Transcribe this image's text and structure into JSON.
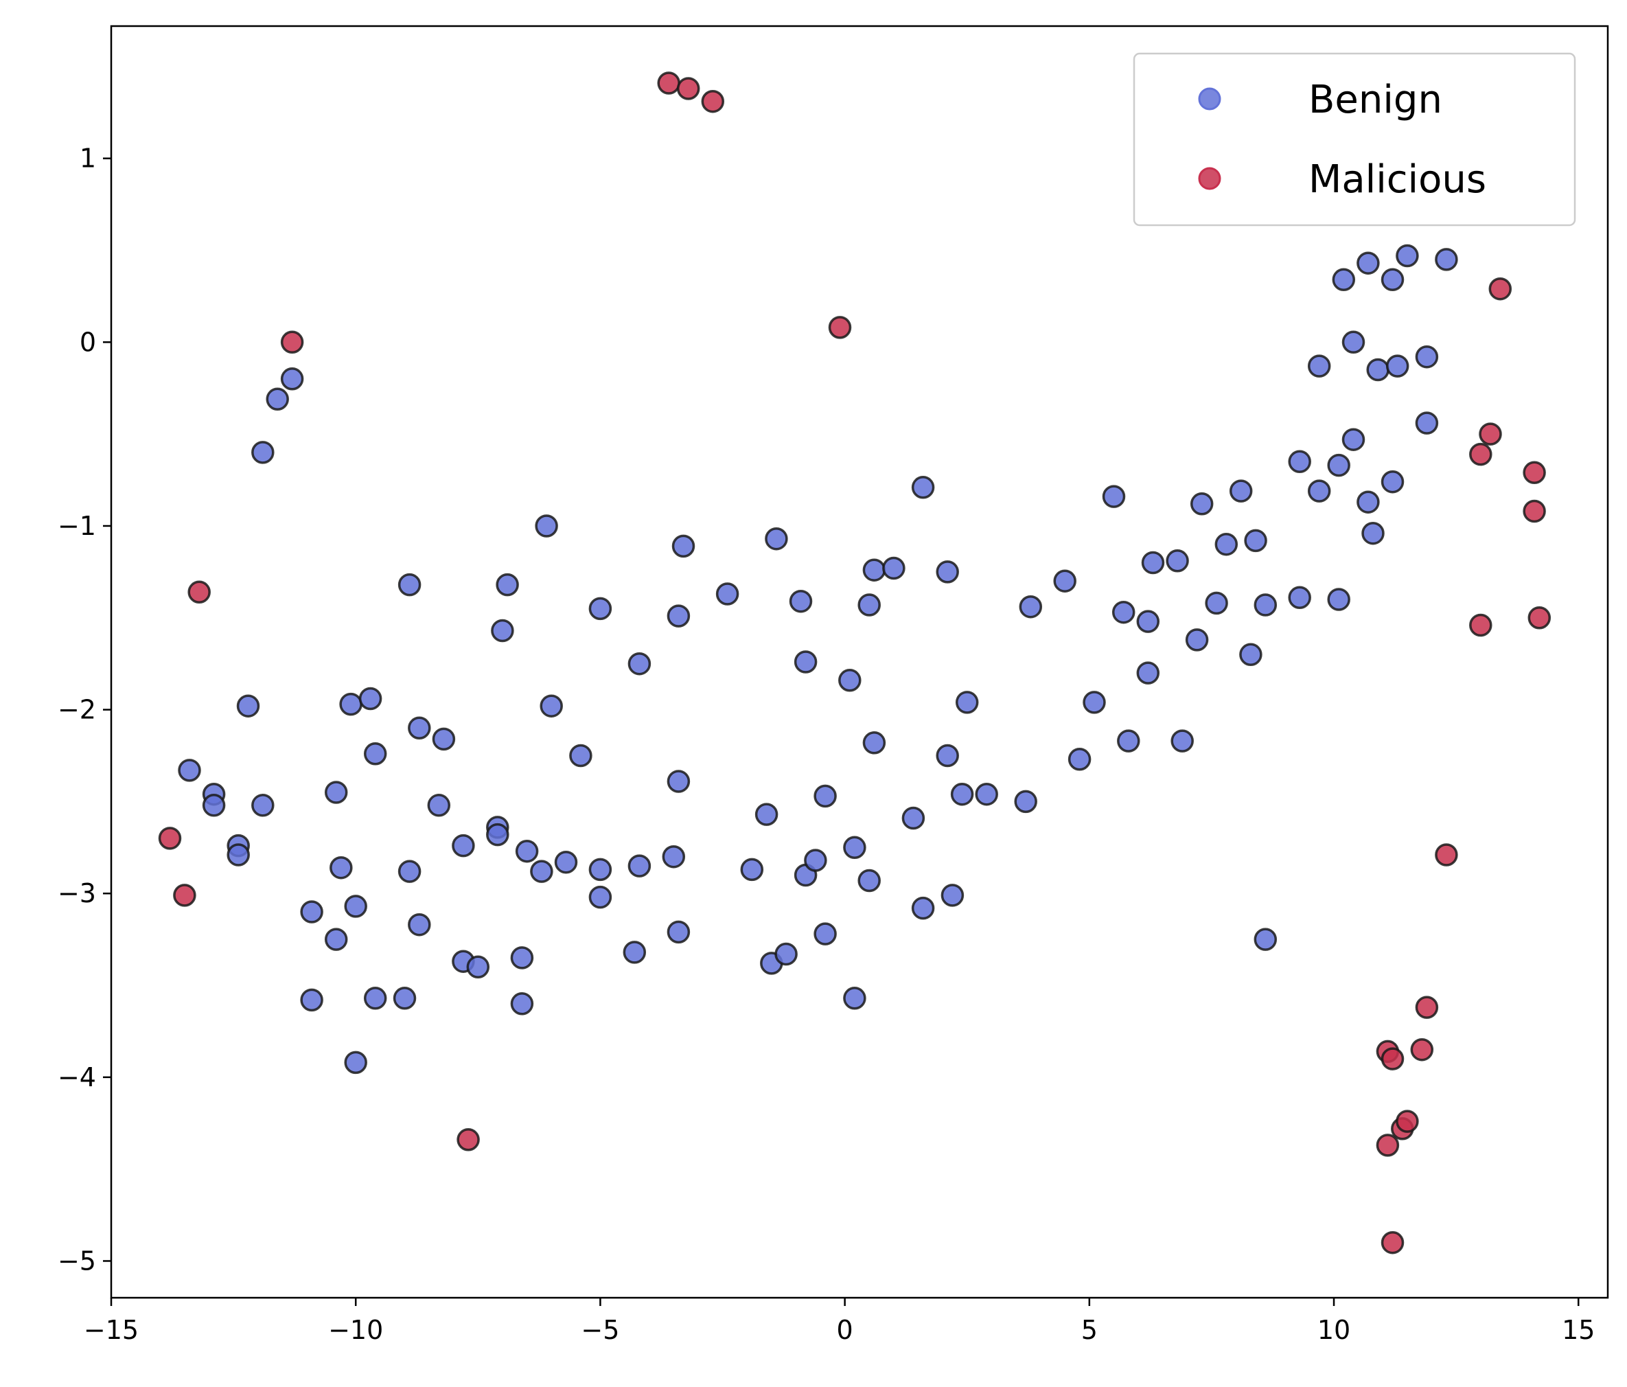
{
  "chart_data": {
    "type": "scatter",
    "title": "",
    "xlabel": "",
    "ylabel": "",
    "xlim": [
      -15,
      15.6
    ],
    "ylim": [
      -5.2,
      1.72
    ],
    "xticks": [
      -15,
      -10,
      -5,
      0,
      5,
      10,
      15
    ],
    "yticks": [
      1,
      0,
      -1,
      -2,
      -3,
      -4,
      -5
    ],
    "xtick_labels": [
      "−15",
      "−10",
      "−5",
      "0",
      "5",
      "10",
      "15"
    ],
    "ytick_labels": [
      "1",
      "0",
      "−1",
      "−2",
      "−3",
      "−4",
      "−5"
    ],
    "grid": false,
    "legend_position": "top-right",
    "series": [
      {
        "name": "Benign",
        "color": "#6272d8",
        "edge_color": "#1a1a1a",
        "points": [
          [
            -11.3,
            -0.2
          ],
          [
            -11.6,
            -0.31
          ],
          [
            -11.9,
            -0.6
          ],
          [
            -13.4,
            -2.33
          ],
          [
            -12.9,
            -2.46
          ],
          [
            -12.9,
            -2.52
          ],
          [
            -12.4,
            -2.74
          ],
          [
            -12.4,
            -2.79
          ],
          [
            -12.2,
            -1.98
          ],
          [
            -11.9,
            -2.52
          ],
          [
            -10.9,
            -3.1
          ],
          [
            -10.9,
            -3.58
          ],
          [
            -10.4,
            -2.45
          ],
          [
            -10.3,
            -2.86
          ],
          [
            -10.4,
            -3.25
          ],
          [
            -10.1,
            -1.97
          ],
          [
            -10.0,
            -3.07
          ],
          [
            -10.0,
            -3.92
          ],
          [
            -9.7,
            -1.94
          ],
          [
            -9.6,
            -2.24
          ],
          [
            -9.6,
            -3.57
          ],
          [
            -9.0,
            -3.57
          ],
          [
            -8.9,
            -1.32
          ],
          [
            -8.9,
            -2.88
          ],
          [
            -8.7,
            -2.1
          ],
          [
            -8.7,
            -3.17
          ],
          [
            -8.2,
            -2.16
          ],
          [
            -8.3,
            -2.52
          ],
          [
            -7.8,
            -2.74
          ],
          [
            -7.8,
            -3.37
          ],
          [
            -7.5,
            -3.4
          ],
          [
            -7.0,
            -1.57
          ],
          [
            -6.9,
            -1.32
          ],
          [
            -7.1,
            -2.64
          ],
          [
            -7.1,
            -2.68
          ],
          [
            -6.6,
            -3.35
          ],
          [
            -6.5,
            -2.77
          ],
          [
            -6.6,
            -3.6
          ],
          [
            -6.2,
            -2.88
          ],
          [
            -6.1,
            -1.0
          ],
          [
            -6.0,
            -1.98
          ],
          [
            -5.7,
            -2.83
          ],
          [
            -5.4,
            -2.25
          ],
          [
            -5.0,
            -1.45
          ],
          [
            -5.0,
            -2.87
          ],
          [
            -5.0,
            -3.02
          ],
          [
            -4.3,
            -3.32
          ],
          [
            -4.2,
            -1.75
          ],
          [
            -4.2,
            -2.85
          ],
          [
            -3.4,
            -1.49
          ],
          [
            -3.4,
            -2.39
          ],
          [
            -3.5,
            -2.8
          ],
          [
            -3.4,
            -3.21
          ],
          [
            -3.3,
            -1.11
          ],
          [
            -2.4,
            -1.37
          ],
          [
            -1.9,
            -2.87
          ],
          [
            -1.6,
            -2.57
          ],
          [
            -1.5,
            -3.38
          ],
          [
            -1.4,
            -1.07
          ],
          [
            -1.2,
            -3.33
          ],
          [
            -0.9,
            -1.41
          ],
          [
            -0.8,
            -1.74
          ],
          [
            -0.8,
            -2.9
          ],
          [
            -0.6,
            -2.82
          ],
          [
            -0.4,
            -2.47
          ],
          [
            -0.4,
            -3.22
          ],
          [
            0.1,
            -1.84
          ],
          [
            0.2,
            -2.75
          ],
          [
            0.2,
            -3.57
          ],
          [
            0.5,
            -1.43
          ],
          [
            0.6,
            -1.24
          ],
          [
            0.5,
            -2.93
          ],
          [
            0.6,
            -2.18
          ],
          [
            1.0,
            -1.23
          ],
          [
            1.4,
            -2.59
          ],
          [
            1.6,
            -3.08
          ],
          [
            1.6,
            -0.79
          ],
          [
            2.1,
            -1.25
          ],
          [
            2.1,
            -2.25
          ],
          [
            2.2,
            -3.01
          ],
          [
            2.4,
            -2.46
          ],
          [
            2.5,
            -1.96
          ],
          [
            2.9,
            -2.46
          ],
          [
            3.7,
            -2.5
          ],
          [
            3.8,
            -1.44
          ],
          [
            4.5,
            -1.3
          ],
          [
            4.8,
            -2.27
          ],
          [
            5.1,
            -1.96
          ],
          [
            5.5,
            -0.84
          ],
          [
            5.7,
            -1.47
          ],
          [
            5.8,
            -2.17
          ],
          [
            6.2,
            -1.52
          ],
          [
            6.2,
            -1.8
          ],
          [
            6.3,
            -1.2
          ],
          [
            6.8,
            -1.19
          ],
          [
            6.9,
            -2.17
          ],
          [
            7.2,
            -1.62
          ],
          [
            7.3,
            -0.88
          ],
          [
            7.6,
            -1.42
          ],
          [
            7.8,
            -1.1
          ],
          [
            8.1,
            -0.81
          ],
          [
            8.3,
            -1.7
          ],
          [
            8.4,
            -1.08
          ],
          [
            8.6,
            -1.43
          ],
          [
            8.6,
            -3.25
          ],
          [
            9.3,
            -0.65
          ],
          [
            9.3,
            -1.39
          ],
          [
            9.7,
            -0.13
          ],
          [
            9.7,
            -0.81
          ],
          [
            10.1,
            -1.4
          ],
          [
            10.1,
            -0.67
          ],
          [
            10.2,
            0.34
          ],
          [
            10.4,
            -0.53
          ],
          [
            10.4,
            0.0
          ],
          [
            10.7,
            -0.87
          ],
          [
            10.7,
            0.43
          ],
          [
            10.8,
            -1.04
          ],
          [
            10.9,
            -0.15
          ],
          [
            11.2,
            -0.76
          ],
          [
            11.2,
            0.34
          ],
          [
            11.3,
            -0.13
          ],
          [
            11.5,
            0.47
          ],
          [
            11.9,
            -0.44
          ],
          [
            11.9,
            -0.08
          ],
          [
            12.3,
            0.45
          ]
        ]
      },
      {
        "name": "Malicious",
        "color": "#c8304e",
        "edge_color": "#1a1a1a",
        "points": [
          [
            -3.6,
            1.41
          ],
          [
            -3.2,
            1.38
          ],
          [
            -2.7,
            1.31
          ],
          [
            -11.3,
            0.0
          ],
          [
            -0.1,
            0.08
          ],
          [
            -13.2,
            -1.36
          ],
          [
            -13.8,
            -2.7
          ],
          [
            -13.5,
            -3.01
          ],
          [
            -7.7,
            -4.34
          ],
          [
            12.3,
            -2.79
          ],
          [
            11.9,
            -3.62
          ],
          [
            11.8,
            -3.85
          ],
          [
            11.1,
            -3.86
          ],
          [
            11.2,
            -3.9
          ],
          [
            11.4,
            -4.28
          ],
          [
            11.5,
            -4.24
          ],
          [
            11.1,
            -4.37
          ],
          [
            11.2,
            -4.9
          ],
          [
            13.4,
            0.29
          ],
          [
            13.2,
            -0.5
          ],
          [
            13.0,
            -0.61
          ],
          [
            14.1,
            -0.71
          ],
          [
            14.1,
            -0.92
          ],
          [
            13.0,
            -1.54
          ],
          [
            14.2,
            -1.5
          ]
        ]
      }
    ]
  }
}
